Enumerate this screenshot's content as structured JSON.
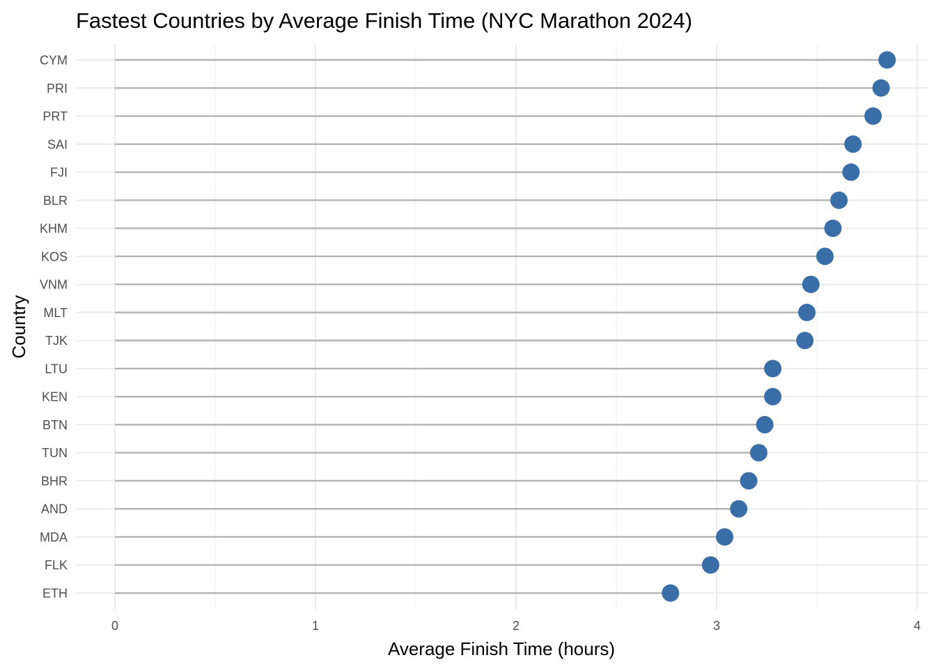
{
  "chart_data": {
    "type": "lollipop",
    "title": "Fastest Countries by Average Finish Time (NYC Marathon 2024)",
    "xlabel": "Average Finish Time (hours)",
    "ylabel": "Country",
    "xlim": [
      0,
      4
    ],
    "xticks": [
      "0",
      "1",
      "2",
      "3",
      "4"
    ],
    "grid": true,
    "colors": {
      "point": "#3a6ea8",
      "stem": "#b3b3b3",
      "grid": "#ebebeb"
    },
    "categories": [
      "CYM",
      "PRI",
      "PRT",
      "SAI",
      "FJI",
      "BLR",
      "KHM",
      "KOS",
      "VNM",
      "MLT",
      "TJK",
      "LTU",
      "KEN",
      "BTN",
      "TUN",
      "BHR",
      "AND",
      "MDA",
      "FLK",
      "ETH"
    ],
    "values": [
      3.85,
      3.82,
      3.78,
      3.68,
      3.67,
      3.61,
      3.58,
      3.54,
      3.47,
      3.45,
      3.44,
      3.28,
      3.28,
      3.24,
      3.21,
      3.16,
      3.11,
      3.04,
      2.97,
      2.77
    ]
  }
}
